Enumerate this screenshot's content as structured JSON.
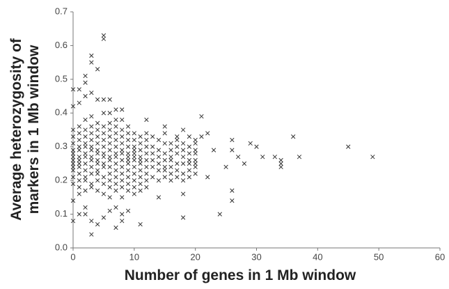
{
  "chart_data": {
    "type": "scatter",
    "xlabel": "Number of genes in 1 Mb window",
    "ylabel": [
      "Average heterozygosity of",
      "markers in 1 Mb window"
    ],
    "color": "#333333",
    "marker": "x",
    "grid": false,
    "xlim": [
      0,
      60
    ],
    "xticks": [
      0,
      10,
      20,
      30,
      40,
      50,
      60
    ],
    "ylim": [
      0,
      0.7
    ],
    "yticks": [
      {
        "value": 0,
        "label": "0.0"
      },
      0.1,
      0.2,
      0.3,
      0.4,
      0.5,
      0.6,
      0.7
    ],
    "x": [
      0,
      0,
      0,
      0,
      0,
      0,
      0,
      0,
      0,
      0,
      0,
      0,
      1,
      1,
      1,
      1,
      1,
      1,
      1,
      1,
      1,
      1,
      1,
      1,
      2,
      2,
      2,
      2,
      2,
      2,
      2,
      2,
      2,
      2,
      2,
      2,
      3,
      3,
      3,
      3,
      3,
      3,
      3,
      3,
      3,
      3,
      3,
      3,
      4,
      4,
      4,
      4,
      4,
      4,
      4,
      4,
      4,
      4,
      4,
      4,
      5,
      5,
      5,
      5,
      5,
      5,
      5,
      5,
      5,
      5,
      5,
      5,
      6,
      6,
      6,
      6,
      6,
      6,
      6,
      6,
      6,
      6,
      6,
      6,
      7,
      7,
      7,
      7,
      7,
      7,
      7,
      7,
      7,
      7,
      7,
      7,
      8,
      8,
      8,
      8,
      8,
      8,
      8,
      8,
      8,
      8,
      8,
      8,
      9,
      9,
      9,
      9,
      9,
      9,
      9,
      9,
      9,
      9,
      9,
      9,
      10,
      10,
      10,
      10,
      10,
      10,
      10,
      10,
      10,
      10,
      10,
      10,
      11,
      11,
      11,
      11,
      11,
      11,
      11,
      11,
      11,
      11,
      12,
      12,
      12,
      12,
      12,
      12,
      12,
      12,
      13,
      13,
      13,
      13,
      13,
      13,
      14,
      14,
      14,
      14,
      14,
      14,
      15,
      15,
      15,
      15,
      15,
      15,
      16,
      16,
      16,
      16,
      16,
      16,
      17,
      17,
      17,
      17,
      17,
      17,
      18,
      18,
      18,
      18,
      18,
      18,
      19,
      19,
      19,
      19,
      19,
      19,
      20,
      20,
      20,
      20,
      20,
      20,
      5,
      5,
      3,
      3,
      4,
      2,
      2,
      1,
      0,
      0,
      1,
      2,
      3,
      4,
      6,
      5,
      7,
      8,
      6,
      12,
      21,
      15,
      18,
      36,
      45,
      49,
      37,
      33,
      34,
      34,
      34,
      31,
      30,
      29,
      27,
      28,
      26,
      26,
      26,
      26,
      24,
      25,
      23,
      22,
      22,
      21,
      20,
      20,
      19,
      18,
      18,
      17,
      16,
      15,
      14,
      12,
      11,
      9,
      8,
      8,
      7,
      7,
      6,
      5,
      4,
      3,
      3,
      2,
      2,
      1,
      0,
      0,
      1
    ],
    "values": [
      0.19,
      0.21,
      0.23,
      0.25,
      0.26,
      0.28,
      0.29,
      0.31,
      0.33,
      0.35,
      0.27,
      0.24,
      0.18,
      0.2,
      0.22,
      0.24,
      0.26,
      0.27,
      0.29,
      0.3,
      0.32,
      0.34,
      0.36,
      0.25,
      0.17,
      0.2,
      0.21,
      0.23,
      0.25,
      0.27,
      0.28,
      0.3,
      0.31,
      0.33,
      0.35,
      0.38,
      0.18,
      0.19,
      0.22,
      0.24,
      0.26,
      0.27,
      0.29,
      0.3,
      0.32,
      0.34,
      0.36,
      0.39,
      0.17,
      0.2,
      0.22,
      0.23,
      0.25,
      0.26,
      0.28,
      0.29,
      0.31,
      0.33,
      0.35,
      0.37,
      0.16,
      0.19,
      0.21,
      0.24,
      0.25,
      0.27,
      0.28,
      0.3,
      0.32,
      0.34,
      0.36,
      0.4,
      0.18,
      0.2,
      0.22,
      0.24,
      0.26,
      0.27,
      0.29,
      0.31,
      0.33,
      0.35,
      0.37,
      0.15,
      0.17,
      0.19,
      0.21,
      0.23,
      0.25,
      0.27,
      0.28,
      0.3,
      0.32,
      0.34,
      0.36,
      0.38,
      0.18,
      0.2,
      0.22,
      0.24,
      0.26,
      0.28,
      0.29,
      0.31,
      0.33,
      0.35,
      0.15,
      0.38,
      0.19,
      0.21,
      0.23,
      0.25,
      0.26,
      0.28,
      0.3,
      0.32,
      0.34,
      0.17,
      0.36,
      0.27,
      0.18,
      0.2,
      0.22,
      0.24,
      0.26,
      0.28,
      0.3,
      0.32,
      0.34,
      0.16,
      0.27,
      0.29,
      0.19,
      0.21,
      0.23,
      0.25,
      0.27,
      0.29,
      0.31,
      0.33,
      0.17,
      0.26,
      0.2,
      0.22,
      0.24,
      0.26,
      0.28,
      0.3,
      0.32,
      0.34,
      0.21,
      0.24,
      0.26,
      0.28,
      0.3,
      0.33,
      0.2,
      0.23,
      0.25,
      0.27,
      0.29,
      0.32,
      0.21,
      0.24,
      0.26,
      0.28,
      0.31,
      0.34,
      0.22,
      0.24,
      0.27,
      0.29,
      0.31,
      0.2,
      0.21,
      0.23,
      0.25,
      0.28,
      0.3,
      0.33,
      0.22,
      0.25,
      0.27,
      0.29,
      0.31,
      0.2,
      0.23,
      0.26,
      0.28,
      0.3,
      0.33,
      0.21,
      0.24,
      0.26,
      0.28,
      0.29,
      0.32,
      0.25,
      0.63,
      0.62,
      0.57,
      0.55,
      0.53,
      0.51,
      0.49,
      0.47,
      0.47,
      0.42,
      0.43,
      0.45,
      0.46,
      0.44,
      0.44,
      0.44,
      0.41,
      0.41,
      0.4,
      0.38,
      0.39,
      0.36,
      0.35,
      0.33,
      0.3,
      0.27,
      0.27,
      0.27,
      0.26,
      0.25,
      0.24,
      0.27,
      0.3,
      0.31,
      0.27,
      0.25,
      0.32,
      0.29,
      0.17,
      0.14,
      0.1,
      0.24,
      0.29,
      0.34,
      0.21,
      0.33,
      0.31,
      0.22,
      0.25,
      0.09,
      0.16,
      0.32,
      0.26,
      0.23,
      0.15,
      0.18,
      0.07,
      0.11,
      0.1,
      0.08,
      0.06,
      0.12,
      0.11,
      0.09,
      0.07,
      0.04,
      0.08,
      0.1,
      0.12,
      0.1,
      0.08,
      0.14,
      0.16
    ]
  }
}
